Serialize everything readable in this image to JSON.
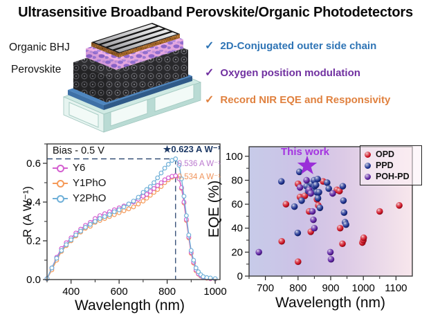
{
  "title": "Ultrasensitive Broadband Perovskite/Organic Photodetectors",
  "device": {
    "layer_labels": [
      "Organic BHJ",
      "Perovskite"
    ],
    "layers": [
      "silver-electrode-strips",
      "copper-layer",
      "organic-bhj-layer",
      "perovskite-layer",
      "blue-contact-layer",
      "glass-substrate"
    ]
  },
  "highlights": [
    {
      "label": "2D-Conjugated outer side chain",
      "color": "#2e74b5"
    },
    {
      "label": "Oxygen position modulation",
      "color": "#7030a0"
    },
    {
      "label": "Record NIR EQE and Responsivity",
      "color": "#e0813f"
    }
  ],
  "chart_data": [
    {
      "type": "line",
      "xlabel": "Wavelength (nm)",
      "ylabel": "R (A W⁻¹)",
      "xlim": [
        300,
        1020
      ],
      "ylim": [
        0,
        0.7
      ],
      "xticks": [
        400,
        600,
        800,
        1000
      ],
      "yticks": [
        0.0,
        0.2,
        0.4,
        0.6
      ],
      "grid": false,
      "legend_position": "upper-left",
      "annotations": {
        "bias": "Bias - 0.5 V",
        "peak_main": "★0.623 A W⁻¹",
        "peak_y6": "0.536 A W⁻¹",
        "peak_y1pho": "0.534 A W⁻¹",
        "peak_main_color": "#1c3864",
        "peak_y6_color": "#bb79cf",
        "peak_y1pho_color": "#f0945c",
        "dash_x": 835,
        "dash_y": 0.623,
        "dash_color": "#27436e"
      },
      "x": [
        300,
        320,
        340,
        360,
        380,
        400,
        420,
        440,
        460,
        480,
        500,
        520,
        540,
        560,
        580,
        600,
        620,
        640,
        660,
        680,
        700,
        715,
        730,
        745,
        760,
        775,
        790,
        805,
        820,
        835,
        850,
        860,
        870,
        880,
        890,
        900,
        910,
        920,
        930,
        940,
        950,
        965,
        980,
        1000
      ],
      "series": [
        {
          "name": "Y6",
          "color": "#d45fd0",
          "values": [
            0.005,
            0.06,
            0.115,
            0.16,
            0.19,
            0.215,
            0.24,
            0.26,
            0.28,
            0.295,
            0.315,
            0.33,
            0.34,
            0.35,
            0.36,
            0.37,
            0.38,
            0.39,
            0.4,
            0.415,
            0.43,
            0.44,
            0.455,
            0.47,
            0.485,
            0.5,
            0.515,
            0.525,
            0.533,
            0.536,
            0.52,
            0.475,
            0.4,
            0.31,
            0.22,
            0.14,
            0.09,
            0.05,
            0.03,
            0.02,
            0.012,
            0.008,
            0.005,
            0.004
          ]
        },
        {
          "name": "Y1PhO",
          "color": "#f59a59",
          "values": [
            0.004,
            0.05,
            0.1,
            0.145,
            0.175,
            0.2,
            0.225,
            0.245,
            0.265,
            0.275,
            0.295,
            0.305,
            0.315,
            0.325,
            0.335,
            0.345,
            0.355,
            0.365,
            0.375,
            0.39,
            0.405,
            0.42,
            0.435,
            0.45,
            0.465,
            0.48,
            0.5,
            0.515,
            0.528,
            0.534,
            0.52,
            0.47,
            0.395,
            0.305,
            0.215,
            0.135,
            0.085,
            0.045,
            0.028,
            0.018,
            0.01,
            0.007,
            0.004,
            0.003
          ]
        },
        {
          "name": "Y2PhO",
          "color": "#6fb0d8",
          "values": [
            0.005,
            0.06,
            0.11,
            0.15,
            0.18,
            0.205,
            0.23,
            0.25,
            0.27,
            0.285,
            0.3,
            0.315,
            0.325,
            0.335,
            0.35,
            0.36,
            0.375,
            0.39,
            0.405,
            0.425,
            0.45,
            0.465,
            0.48,
            0.5,
            0.525,
            0.55,
            0.575,
            0.595,
            0.615,
            0.623,
            0.59,
            0.52,
            0.43,
            0.33,
            0.23,
            0.15,
            0.1,
            0.06,
            0.04,
            0.025,
            0.015,
            0.01,
            0.008,
            0.005
          ]
        }
      ]
    },
    {
      "type": "scatter",
      "xlabel": "Wavelength  (nm)",
      "ylabel": "EQE (%)",
      "xlim": [
        650,
        1150
      ],
      "ylim": [
        0,
        108
      ],
      "xticks": [
        700,
        800,
        900,
        1000,
        1100
      ],
      "yticks": [
        0,
        20,
        40,
        60,
        80,
        100
      ],
      "grid": false,
      "legend_position": "upper-right",
      "bg_gradient": [
        "#c7cbe9",
        "#cdc2e6",
        "#dccae6",
        "#f8e7ec"
      ],
      "annotation": {
        "label": "This work",
        "color": "#a433e0",
        "star_x": 828,
        "star_y": 92,
        "star_color": "#9a2ed8"
      },
      "series": [
        {
          "name": "OPD",
          "color": "#cc1122",
          "points": [
            [
              750,
              29
            ],
            [
              763,
              60
            ],
            [
              800,
              12
            ],
            [
              800,
              77
            ],
            [
              806,
              66
            ],
            [
              821,
              67
            ],
            [
              834,
              54
            ],
            [
              839,
              37
            ],
            [
              858,
              64
            ],
            [
              862,
              59
            ],
            [
              877,
              79
            ],
            [
              919,
              72
            ],
            [
              927,
              71
            ],
            [
              929,
              40
            ],
            [
              936,
              27
            ],
            [
              997,
              28
            ],
            [
              1000,
              30
            ],
            [
              1001,
              32
            ],
            [
              1050,
              54
            ],
            [
              1110,
              59
            ]
          ]
        },
        {
          "name": "PPD",
          "color": "#1b2f8e",
          "points": [
            [
              749,
              79
            ],
            [
              789,
              58
            ],
            [
              799,
              36
            ],
            [
              804,
              87
            ],
            [
              811,
              63
            ],
            [
              826,
              75
            ],
            [
              831,
              71
            ],
            [
              836,
              74
            ],
            [
              841,
              77
            ],
            [
              845,
              72
            ],
            [
              849,
              80
            ],
            [
              851,
              75
            ],
            [
              855,
              76
            ],
            [
              857,
              70
            ],
            [
              860,
              81
            ],
            [
              861,
              65
            ],
            [
              864,
              70
            ],
            [
              867,
              57
            ],
            [
              889,
              78
            ],
            [
              894,
              73
            ],
            [
              937,
              75
            ],
            [
              939,
              63
            ],
            [
              941,
              53
            ],
            [
              944,
              45
            ],
            [
              947,
              43
            ]
          ]
        },
        {
          "name": "POH-PD",
          "color": "#5a1fa0",
          "points": [
            [
              680,
              20
            ],
            [
              806,
              74
            ],
            [
              826,
              80
            ],
            [
              834,
              72
            ],
            [
              839,
              69
            ],
            [
              844,
              54
            ],
            [
              847,
              47
            ],
            [
              850,
              40
            ],
            [
              899,
              20
            ],
            [
              901,
              14
            ],
            [
              906,
              69
            ]
          ]
        }
      ]
    }
  ]
}
